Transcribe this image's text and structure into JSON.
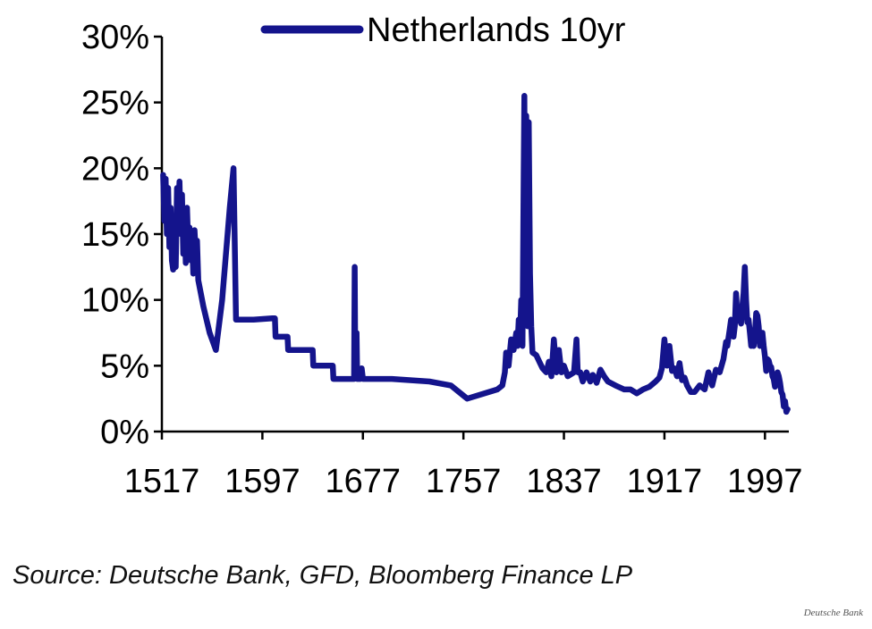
{
  "chart_data": {
    "type": "line",
    "title": "",
    "xlabel": "",
    "ylabel": "",
    "xlim": [
      1517,
      2016
    ],
    "ylim": [
      0,
      30
    ],
    "x_ticks": [
      "1517",
      "1597",
      "1677",
      "1757",
      "1837",
      "1917",
      "1997"
    ],
    "y_ticks": [
      "0%",
      "5%",
      "10%",
      "15%",
      "20%",
      "25%",
      "30%"
    ],
    "legend_position": "top",
    "grid": false,
    "series": [
      {
        "name": "Netherlands 10yr",
        "color": "#14148c",
        "points": [
          [
            1518,
            19.5
          ],
          [
            1519,
            16
          ],
          [
            1520,
            19.2
          ],
          [
            1521,
            15
          ],
          [
            1522,
            18.5
          ],
          [
            1523,
            14
          ],
          [
            1524,
            17
          ],
          [
            1525,
            13
          ],
          [
            1526,
            12.3
          ],
          [
            1527,
            16
          ],
          [
            1528,
            12.5
          ],
          [
            1529,
            18.5
          ],
          [
            1530,
            17
          ],
          [
            1531,
            19
          ],
          [
            1532,
            15
          ],
          [
            1533,
            18
          ],
          [
            1534,
            13.5
          ],
          [
            1535,
            16.5
          ],
          [
            1536,
            12.8
          ],
          [
            1537,
            17
          ],
          [
            1538,
            14
          ],
          [
            1539,
            15.5
          ],
          [
            1540,
            13
          ],
          [
            1541,
            14.8
          ],
          [
            1542,
            12
          ],
          [
            1543,
            15.3
          ],
          [
            1544,
            13.5
          ],
          [
            1545,
            14.5
          ],
          [
            1546,
            11.5
          ],
          [
            1550,
            9.5
          ],
          [
            1555,
            7.5
          ],
          [
            1560,
            6.2
          ],
          [
            1565,
            10
          ],
          [
            1571,
            17
          ],
          [
            1574,
            20
          ],
          [
            1576,
            8.5
          ],
          [
            1590,
            8.5
          ],
          [
            1605,
            8.6
          ],
          [
            1607,
            8.6
          ],
          [
            1607.5,
            7.2
          ],
          [
            1617,
            7.2
          ],
          [
            1617.5,
            6.2
          ],
          [
            1637,
            6.2
          ],
          [
            1637.5,
            5
          ],
          [
            1653,
            5
          ],
          [
            1653.5,
            4
          ],
          [
            1670,
            4
          ],
          [
            1670.5,
            12.5
          ],
          [
            1671,
            4.2
          ],
          [
            1672,
            7.5
          ],
          [
            1672.5,
            4
          ],
          [
            1675,
            4
          ],
          [
            1676,
            4.8
          ],
          [
            1677,
            4
          ],
          [
            1700,
            4
          ],
          [
            1730,
            3.8
          ],
          [
            1747,
            3.5
          ],
          [
            1760,
            2.5
          ],
          [
            1784,
            3.2
          ],
          [
            1788,
            3.5
          ],
          [
            1790,
            4.5
          ],
          [
            1791,
            6
          ],
          [
            1793,
            5
          ],
          [
            1795,
            7
          ],
          [
            1797,
            6.2
          ],
          [
            1799,
            7.5
          ],
          [
            1800,
            6.5
          ],
          [
            1801,
            8.5
          ],
          [
            1802,
            7
          ],
          [
            1803,
            10
          ],
          [
            1804,
            6.5
          ],
          [
            1805,
            20
          ],
          [
            1805.5,
            25.5
          ],
          [
            1806,
            14
          ],
          [
            1807,
            24
          ],
          [
            1808,
            8
          ],
          [
            1809,
            23.5
          ],
          [
            1810,
            12
          ],
          [
            1811,
            8
          ],
          [
            1812,
            6
          ],
          [
            1815,
            5.8
          ],
          [
            1818,
            5.2
          ],
          [
            1820,
            4.8
          ],
          [
            1823,
            4.5
          ],
          [
            1825,
            5.3
          ],
          [
            1827,
            4.2
          ],
          [
            1829,
            7
          ],
          [
            1831,
            4.5
          ],
          [
            1833,
            6.2
          ],
          [
            1835,
            4.5
          ],
          [
            1837,
            5
          ],
          [
            1840,
            4.2
          ],
          [
            1845,
            4.5
          ],
          [
            1847,
            7
          ],
          [
            1848,
            4.5
          ],
          [
            1850,
            4.5
          ],
          [
            1852,
            3.8
          ],
          [
            1855,
            4.5
          ],
          [
            1858,
            3.8
          ],
          [
            1860,
            4.3
          ],
          [
            1863,
            3.7
          ],
          [
            1866,
            4.7
          ],
          [
            1869,
            4.2
          ],
          [
            1872,
            3.8
          ],
          [
            1878,
            3.5
          ],
          [
            1885,
            3.2
          ],
          [
            1890,
            3.2
          ],
          [
            1895,
            2.9
          ],
          [
            1900,
            3.2
          ],
          [
            1905,
            3.4
          ],
          [
            1910,
            3.8
          ],
          [
            1913,
            4.1
          ],
          [
            1915,
            4.8
          ],
          [
            1917,
            7
          ],
          [
            1919,
            5
          ],
          [
            1921,
            6.5
          ],
          [
            1923,
            4.6
          ],
          [
            1925,
            4.8
          ],
          [
            1927,
            4.2
          ],
          [
            1929,
            5.2
          ],
          [
            1931,
            3.9
          ],
          [
            1933,
            4.1
          ],
          [
            1935,
            3.5
          ],
          [
            1938,
            3
          ],
          [
            1941,
            3
          ],
          [
            1945,
            3.5
          ],
          [
            1949,
            3.2
          ],
          [
            1952,
            4.5
          ],
          [
            1955,
            3.5
          ],
          [
            1958,
            4.7
          ],
          [
            1961,
            4.5
          ],
          [
            1964,
            5.5
          ],
          [
            1966,
            6.8
          ],
          [
            1967,
            6.5
          ],
          [
            1969,
            7.8
          ],
          [
            1970,
            8.5
          ],
          [
            1971,
            7.3
          ],
          [
            1972,
            7.2
          ],
          [
            1973,
            8
          ],
          [
            1974,
            10.5
          ],
          [
            1975,
            8.8
          ],
          [
            1976,
            9
          ],
          [
            1977,
            8.5
          ],
          [
            1978,
            8.2
          ],
          [
            1979,
            9.5
          ],
          [
            1980,
            10.5
          ],
          [
            1981,
            12.5
          ],
          [
            1982,
            10
          ],
          [
            1983,
            8.3
          ],
          [
            1984,
            8.5
          ],
          [
            1985,
            7.5
          ],
          [
            1986,
            6.5
          ],
          [
            1987,
            6.6
          ],
          [
            1988,
            6.5
          ],
          [
            1989,
            7.5
          ],
          [
            1990,
            9
          ],
          [
            1991,
            8.8
          ],
          [
            1992,
            8
          ],
          [
            1993,
            6.5
          ],
          [
            1994,
            7
          ],
          [
            1995,
            7.5
          ],
          [
            1996,
            6.5
          ],
          [
            1997,
            5.7
          ],
          [
            1998,
            4.6
          ],
          [
            1999,
            5.5
          ],
          [
            2000,
            5.4
          ],
          [
            2001,
            5.0
          ],
          [
            2002,
            4.9
          ],
          [
            2003,
            4.2
          ],
          [
            2004,
            4.0
          ],
          [
            2005,
            3.4
          ],
          [
            2006,
            4.2
          ],
          [
            2007,
            4.5
          ],
          [
            2008,
            4.2
          ],
          [
            2009,
            3.7
          ],
          [
            2010,
            3.0
          ],
          [
            2011,
            2.8
          ],
          [
            2012,
            1.9
          ],
          [
            2013,
            2.3
          ],
          [
            2014,
            1.5
          ],
          [
            2015,
            1.7
          ]
        ]
      }
    ]
  },
  "footer": {
    "source": "Source: Deutsche Bank, GFD, Bloomberg Finance LP",
    "watermark": "Deutsche Bank"
  }
}
